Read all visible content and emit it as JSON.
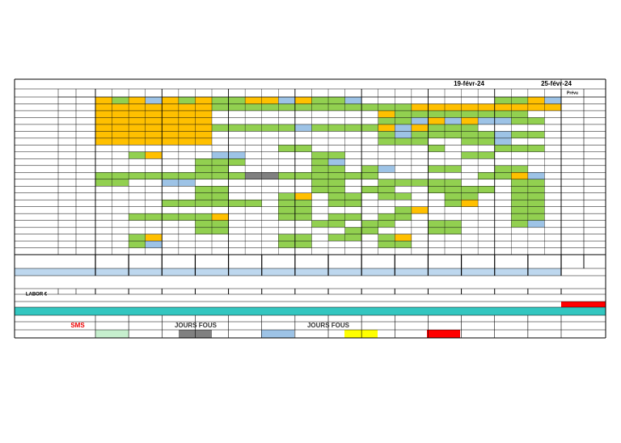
{
  "header": {
    "dates": [
      "19-févr-24",
      "25-févr-24"
    ],
    "planned": "Prévu"
  },
  "rows": {
    "labor": "LABOR €"
  },
  "legend": {
    "sms": "SMS",
    "special_days": [
      "JOURS FOUS",
      "JOURS FOUS"
    ]
  }
}
